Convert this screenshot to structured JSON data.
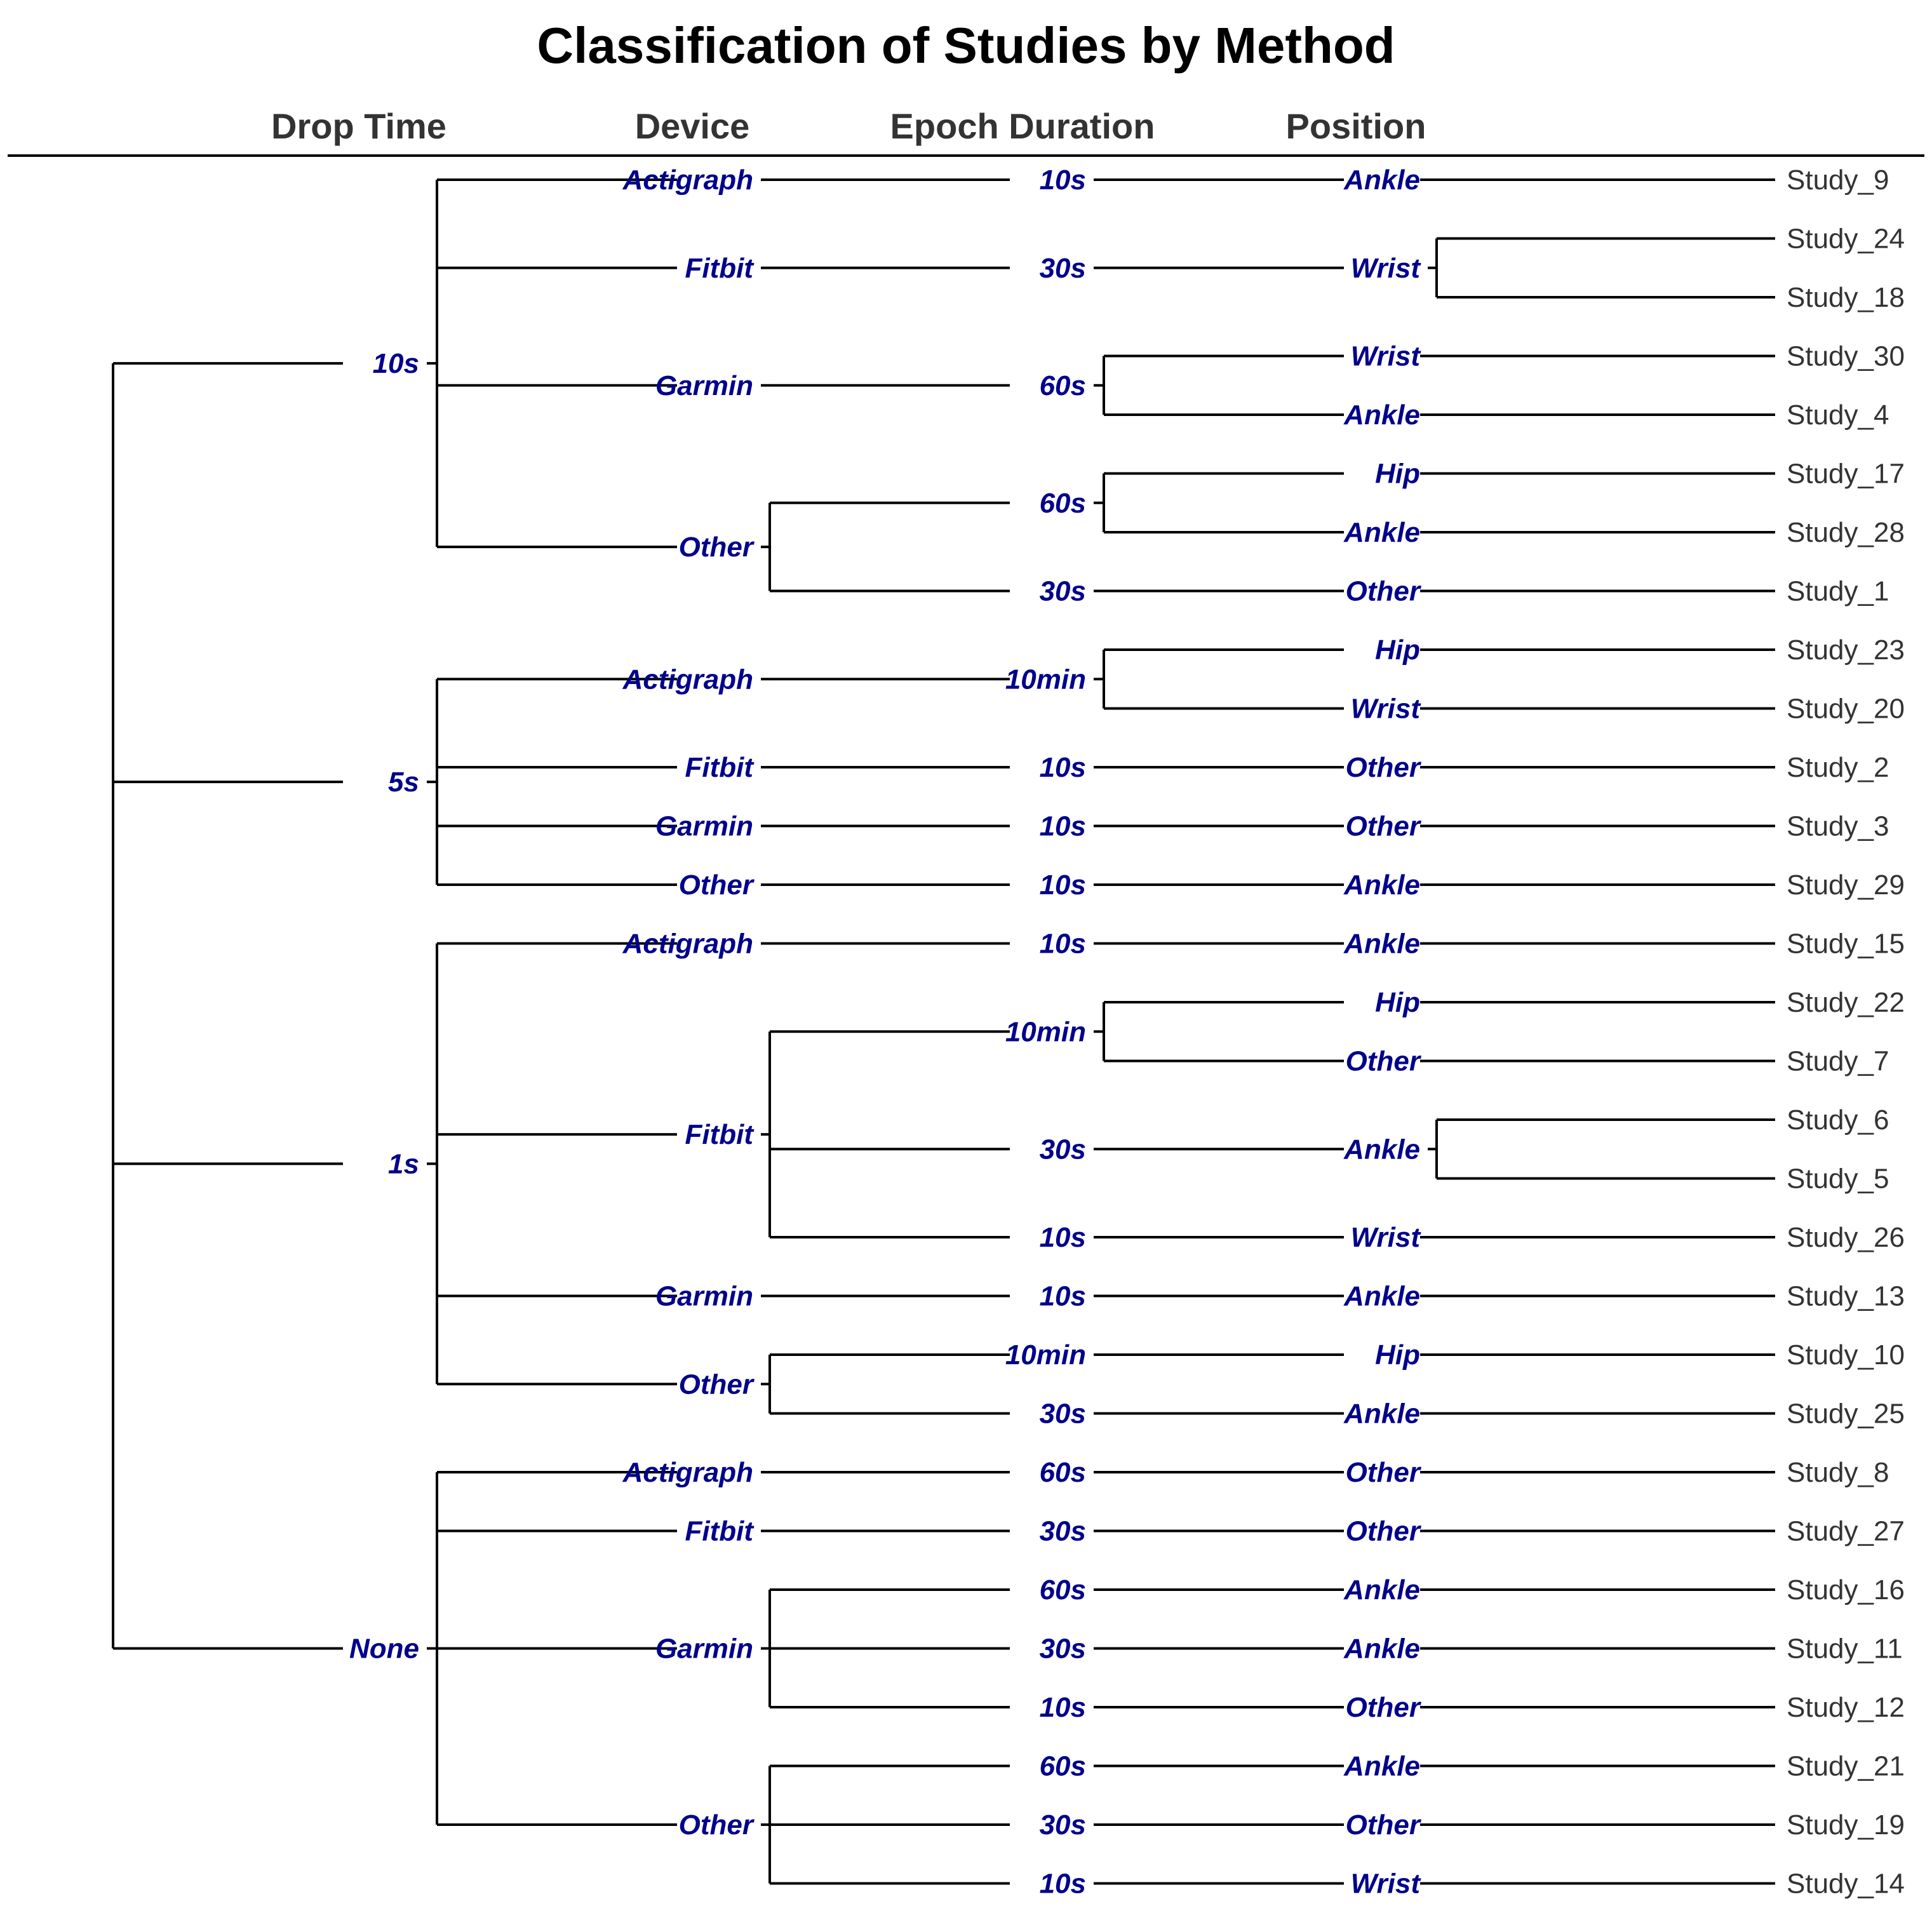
{
  "title": "Classification of Studies by Method",
  "levels": [
    "Drop Time",
    "Device",
    "Epoch Duration",
    "Position"
  ],
  "colors": {
    "node_label": "#00008b",
    "leaf_label": "#333333",
    "header": "#333333",
    "line": "#000000"
  },
  "tree": [
    {
      "label": "10s",
      "children": [
        {
          "label": "Actigraph",
          "children": [
            {
              "label": "10s",
              "children": [
                {
                  "label": "Ankle",
                  "studies": [
                    "Study_9"
                  ]
                }
              ]
            }
          ]
        },
        {
          "label": "Fitbit",
          "children": [
            {
              "label": "30s",
              "children": [
                {
                  "label": "Wrist",
                  "studies": [
                    "Study_24",
                    "Study_18"
                  ]
                }
              ]
            }
          ]
        },
        {
          "label": "Garmin",
          "children": [
            {
              "label": "60s",
              "children": [
                {
                  "label": "Wrist",
                  "studies": [
                    "Study_30"
                  ]
                },
                {
                  "label": "Ankle",
                  "studies": [
                    "Study_4"
                  ]
                }
              ]
            }
          ]
        },
        {
          "label": "Other",
          "children": [
            {
              "label": "60s",
              "children": [
                {
                  "label": "Hip",
                  "studies": [
                    "Study_17"
                  ]
                },
                {
                  "label": "Ankle",
                  "studies": [
                    "Study_28"
                  ]
                }
              ]
            },
            {
              "label": "30s",
              "children": [
                {
                  "label": "Other",
                  "studies": [
                    "Study_1"
                  ]
                }
              ]
            }
          ]
        }
      ]
    },
    {
      "label": "5s",
      "children": [
        {
          "label": "Actigraph",
          "children": [
            {
              "label": "10min",
              "children": [
                {
                  "label": "Hip",
                  "studies": [
                    "Study_23"
                  ]
                },
                {
                  "label": "Wrist",
                  "studies": [
                    "Study_20"
                  ]
                }
              ]
            }
          ]
        },
        {
          "label": "Fitbit",
          "children": [
            {
              "label": "10s",
              "children": [
                {
                  "label": "Other",
                  "studies": [
                    "Study_2"
                  ]
                }
              ]
            }
          ]
        },
        {
          "label": "Garmin",
          "children": [
            {
              "label": "10s",
              "children": [
                {
                  "label": "Other",
                  "studies": [
                    "Study_3"
                  ]
                }
              ]
            }
          ]
        },
        {
          "label": "Other",
          "children": [
            {
              "label": "10s",
              "children": [
                {
                  "label": "Ankle",
                  "studies": [
                    "Study_29"
                  ]
                }
              ]
            }
          ]
        }
      ]
    },
    {
      "label": "1s",
      "children": [
        {
          "label": "Actigraph",
          "children": [
            {
              "label": "10s",
              "children": [
                {
                  "label": "Ankle",
                  "studies": [
                    "Study_15"
                  ]
                }
              ]
            }
          ]
        },
        {
          "label": "Fitbit",
          "children": [
            {
              "label": "10min",
              "children": [
                {
                  "label": "Hip",
                  "studies": [
                    "Study_22"
                  ]
                },
                {
                  "label": "Other",
                  "studies": [
                    "Study_7"
                  ]
                }
              ]
            },
            {
              "label": "30s",
              "children": [
                {
                  "label": "Ankle",
                  "studies": [
                    "Study_6",
                    "Study_5"
                  ]
                }
              ]
            },
            {
              "label": "10s",
              "children": [
                {
                  "label": "Wrist",
                  "studies": [
                    "Study_26"
                  ]
                }
              ]
            }
          ]
        },
        {
          "label": "Garmin",
          "children": [
            {
              "label": "10s",
              "children": [
                {
                  "label": "Ankle",
                  "studies": [
                    "Study_13"
                  ]
                }
              ]
            }
          ]
        },
        {
          "label": "Other",
          "children": [
            {
              "label": "10min",
              "children": [
                {
                  "label": "Hip",
                  "studies": [
                    "Study_10"
                  ]
                }
              ]
            },
            {
              "label": "30s",
              "children": [
                {
                  "label": "Ankle",
                  "studies": [
                    "Study_25"
                  ]
                }
              ]
            }
          ]
        }
      ]
    },
    {
      "label": "None",
      "children": [
        {
          "label": "Actigraph",
          "children": [
            {
              "label": "60s",
              "children": [
                {
                  "label": "Other",
                  "studies": [
                    "Study_8"
                  ]
                }
              ]
            }
          ]
        },
        {
          "label": "Fitbit",
          "children": [
            {
              "label": "30s",
              "children": [
                {
                  "label": "Other",
                  "studies": [
                    "Study_27"
                  ]
                }
              ]
            }
          ]
        },
        {
          "label": "Garmin",
          "children": [
            {
              "label": "60s",
              "children": [
                {
                  "label": "Ankle",
                  "studies": [
                    "Study_16"
                  ]
                }
              ]
            },
            {
              "label": "30s",
              "children": [
                {
                  "label": "Ankle",
                  "studies": [
                    "Study_11"
                  ]
                }
              ]
            },
            {
              "label": "10s",
              "children": [
                {
                  "label": "Other",
                  "studies": [
                    "Study_12"
                  ]
                }
              ]
            }
          ]
        },
        {
          "label": "Other",
          "children": [
            {
              "label": "60s",
              "children": [
                {
                  "label": "Ankle",
                  "studies": [
                    "Study_21"
                  ]
                }
              ]
            },
            {
              "label": "30s",
              "children": [
                {
                  "label": "Other",
                  "studies": [
                    "Study_19"
                  ]
                }
              ]
            },
            {
              "label": "10s",
              "children": [
                {
                  "label": "Wrist",
                  "studies": [
                    "Study_14"
                  ]
                }
              ]
            }
          ]
        }
      ]
    }
  ]
}
